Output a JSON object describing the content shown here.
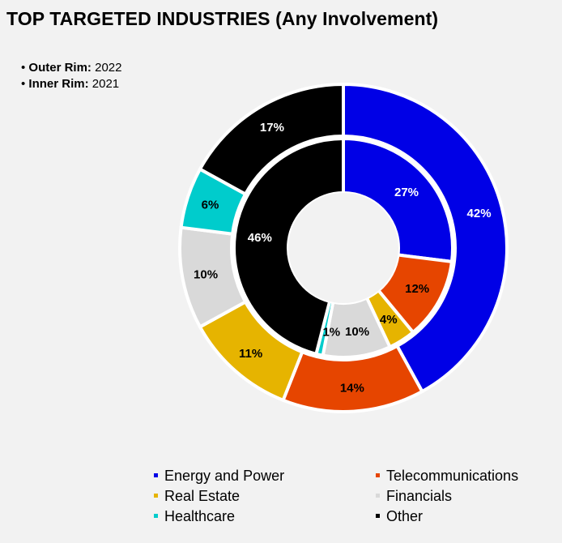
{
  "title": "TOP TARGETED INDUSTRIES (Any Involvement)",
  "notes": [
    {
      "label": "Outer Rim:",
      "value": "2022"
    },
    {
      "label": "Inner Rim:",
      "value": "2021"
    }
  ],
  "colors": {
    "energy": "#0000e6",
    "telecom": "#e64500",
    "realestate": "#e6b400",
    "financials": "#d9d9d9",
    "healthcare": "#00cccc",
    "other": "#000000"
  },
  "chart_data": {
    "type": "pie",
    "title": "TOP TARGETED INDUSTRIES (Any Involvement)",
    "categories": [
      "Energy and Power",
      "Telecommunications",
      "Real Estate",
      "Financials",
      "Healthcare",
      "Other"
    ],
    "series": [
      {
        "name": "2022",
        "ring": "outer",
        "values": [
          42,
          14,
          11,
          10,
          6,
          17
        ],
        "labels": [
          "42%",
          "14%",
          "11%",
          "10%",
          "6%",
          "17%"
        ]
      },
      {
        "name": "2021",
        "ring": "inner",
        "values": [
          27,
          12,
          4,
          10,
          1,
          46
        ],
        "labels": [
          "27%",
          "12%",
          "4%",
          "10%",
          "1%",
          "46%"
        ]
      }
    ],
    "legend_position": "bottom"
  },
  "legend": [
    {
      "label": "Energy and Power",
      "color": "#0000e6"
    },
    {
      "label": "Telecommunications",
      "color": "#e64500"
    },
    {
      "label": "Real Estate",
      "color": "#e6b400"
    },
    {
      "label": "Financials",
      "color": "#d9d9d9"
    },
    {
      "label": "Healthcare",
      "color": "#00cccc"
    },
    {
      "label": "Other",
      "color": "#000000"
    }
  ]
}
